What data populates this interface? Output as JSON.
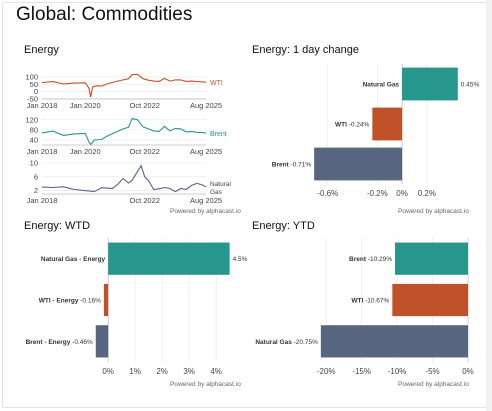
{
  "page": {
    "title": "Global: Commodities"
  },
  "colors": {
    "wti": "#c0522a",
    "brent": "#27968c",
    "natgas": "#586680",
    "grid": "#e6e6e6",
    "axis": "#444444"
  },
  "powered_by": "Powered by alphacast.io",
  "panels": {
    "energy": {
      "title": "Energy"
    },
    "one_day": {
      "title": "Energy: 1 day change"
    },
    "wtd": {
      "title": "Energy: WTD"
    },
    "ytd": {
      "title": "Energy: YTD"
    }
  },
  "chart_data": [
    {
      "id": "energy_wti",
      "type": "line",
      "title": "Energy",
      "series": [
        {
          "name": "WTI",
          "color": "#c0522a",
          "x": [
            "2018-01",
            "2018-07",
            "2019-01",
            "2019-07",
            "2020-01",
            "2020-03",
            "2020-04",
            "2020-05",
            "2020-07",
            "2020-10",
            "2021-01",
            "2021-04",
            "2021-07",
            "2021-10",
            "2022-01",
            "2022-03",
            "2022-06",
            "2022-09",
            "2022-12",
            "2023-03",
            "2023-06",
            "2023-09",
            "2023-12",
            "2024-03",
            "2024-06",
            "2024-09",
            "2024-12",
            "2025-03",
            "2025-06",
            "2025-08"
          ],
          "y": [
            62,
            68,
            52,
            58,
            60,
            25,
            -37,
            30,
            40,
            38,
            52,
            62,
            72,
            80,
            88,
            115,
            118,
            88,
            78,
            72,
            70,
            90,
            72,
            80,
            80,
            70,
            72,
            68,
            66,
            64
          ]
        }
      ],
      "yticks": [
        100,
        50,
        0,
        -50
      ],
      "ylim": [
        -50,
        120
      ],
      "xticks": [
        "Jan 2018",
        "Jan 2020",
        "Oct 2022",
        "Aug 2025"
      ],
      "xdomain": [
        "2018-01",
        "2025-08"
      ]
    },
    {
      "id": "energy_brent",
      "type": "line",
      "series": [
        {
          "name": "Brent",
          "color": "#27968c",
          "x": [
            "2018-01",
            "2018-07",
            "2019-01",
            "2019-07",
            "2020-01",
            "2020-03",
            "2020-04",
            "2020-06",
            "2020-10",
            "2021-01",
            "2021-04",
            "2021-07",
            "2021-10",
            "2022-01",
            "2022-03",
            "2022-06",
            "2022-09",
            "2022-12",
            "2023-03",
            "2023-06",
            "2023-09",
            "2023-12",
            "2024-03",
            "2024-06",
            "2024-09",
            "2024-12",
            "2025-03",
            "2025-06",
            "2025-08"
          ],
          "y": [
            68,
            75,
            58,
            64,
            66,
            32,
            22,
            40,
            42,
            55,
            65,
            74,
            84,
            90,
            125,
            120,
            92,
            84,
            76,
            74,
            94,
            76,
            86,
            84,
            72,
            74,
            70,
            69,
            67
          ]
        }
      ],
      "yticks": [
        120,
        80,
        40
      ],
      "ylim": [
        20,
        135
      ],
      "xticks": [
        "Jan 2018",
        "Jan 2020",
        "Oct 2022",
        "Aug 2025"
      ],
      "xdomain": [
        "2018-01",
        "2025-08"
      ]
    },
    {
      "id": "energy_natgas",
      "type": "line",
      "series": [
        {
          "name": "Natural Gas",
          "color": "#586680",
          "x": [
            "2018-01",
            "2018-07",
            "2019-01",
            "2019-07",
            "2020-01",
            "2020-06",
            "2020-10",
            "2021-01",
            "2021-04",
            "2021-07",
            "2021-10",
            "2022-01",
            "2022-03",
            "2022-06",
            "2022-08",
            "2022-10",
            "2022-12",
            "2023-03",
            "2023-06",
            "2023-09",
            "2023-12",
            "2024-03",
            "2024-06",
            "2024-09",
            "2024-12",
            "2025-03",
            "2025-06",
            "2025-08"
          ],
          "y": [
            3.0,
            2.9,
            3.1,
            2.3,
            2.0,
            1.7,
            2.8,
            2.7,
            2.6,
            3.8,
            5.5,
            4.2,
            5.0,
            7.5,
            9.2,
            6.0,
            5.0,
            2.3,
            2.5,
            2.9,
            2.6,
            1.7,
            2.6,
            2.3,
            3.5,
            4.1,
            3.6,
            3.1
          ]
        }
      ],
      "yticks": [
        10,
        6,
        2
      ],
      "ylim": [
        1,
        10
      ],
      "xticks": [
        "Jan 2018",
        "Oct 2022",
        "Aug 2025"
      ],
      "xdomain": [
        "2018-01",
        "2025-08"
      ]
    },
    {
      "id": "one_day",
      "type": "bar",
      "orientation": "horizontal",
      "title": "Energy: 1 day change",
      "categories": [
        "Natural Gas",
        "WTI",
        "Brent"
      ],
      "values": [
        0.45,
        -0.24,
        -0.71
      ],
      "value_labels": [
        "0.45%",
        "-0.24%",
        "-0.71%"
      ],
      "colors": [
        "#27968c",
        "#c0522a",
        "#586680"
      ],
      "xticks": [
        -0.6,
        -0.2,
        0,
        0.2
      ],
      "xtick_labels": [
        "-0.6%",
        "-0.2%",
        "0%",
        "0.2%"
      ],
      "xlim": [
        -0.8,
        0.5
      ]
    },
    {
      "id": "wtd",
      "type": "bar",
      "orientation": "horizontal",
      "title": "Energy: WTD",
      "categories": [
        "Natural Gas - Energy",
        "WTI - Energy",
        "Brent - Energy"
      ],
      "values": [
        4.5,
        -0.16,
        -0.46
      ],
      "value_labels": [
        "4.5%",
        "-0.16%",
        "-0.46%"
      ],
      "colors": [
        "#27968c",
        "#c0522a",
        "#586680"
      ],
      "xticks": [
        0,
        1,
        2,
        3,
        4
      ],
      "xtick_labels": [
        "0%",
        "1%",
        "2%",
        "3%",
        "4%"
      ],
      "xlim": [
        -0.6,
        4.7
      ]
    },
    {
      "id": "ytd",
      "type": "bar",
      "orientation": "horizontal",
      "title": "Energy: YTD",
      "categories": [
        "Brent",
        "WTI",
        "Natural Gas"
      ],
      "values": [
        -10.29,
        -10.67,
        -20.75
      ],
      "value_labels": [
        "-10.29%",
        "-10.67%",
        "-20.75%"
      ],
      "colors": [
        "#27968c",
        "#c0522a",
        "#586680"
      ],
      "xticks": [
        -20,
        -15,
        -10,
        -5,
        0
      ],
      "xtick_labels": [
        "-20%",
        "-15%",
        "-10%",
        "-5%",
        "0%"
      ],
      "xlim": [
        -22,
        0
      ]
    }
  ]
}
